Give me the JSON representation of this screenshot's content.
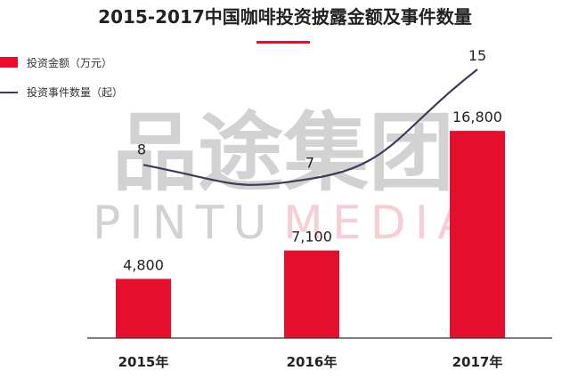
{
  "chart_data": {
    "type": "bar",
    "title": "2015-2017中国咖啡投资披露金额及事件数量",
    "categories": [
      "2015年",
      "2016年",
      "2017年"
    ],
    "series": [
      {
        "name": "投资金额（万元）",
        "type": "bar",
        "values": [
          4800,
          7100,
          16800
        ],
        "labels": [
          "4,800",
          "7,100",
          "16,800"
        ],
        "color": "#e60e2d"
      },
      {
        "name": "投资事件数量（起）",
        "type": "line",
        "values": [
          8,
          7,
          15
        ],
        "labels": [
          "8",
          "7",
          "15"
        ],
        "color": "#3d3b5a"
      }
    ],
    "legend_position": "top-left",
    "grid": false,
    "bar_ylim": [
      0,
      22000
    ],
    "line_ylim": [
      0,
      18
    ]
  },
  "watermark": {
    "text_cn": "品途集团",
    "text_en_left": "PINTU",
    "text_en_right": "MEDIA"
  },
  "colors": {
    "accent": "#e60e2d",
    "line": "#3d3b5a",
    "title": "#222222",
    "axis": "#333333",
    "watermark_gray": "#d2d2d2",
    "watermark_pink": "#f6cfd6"
  }
}
